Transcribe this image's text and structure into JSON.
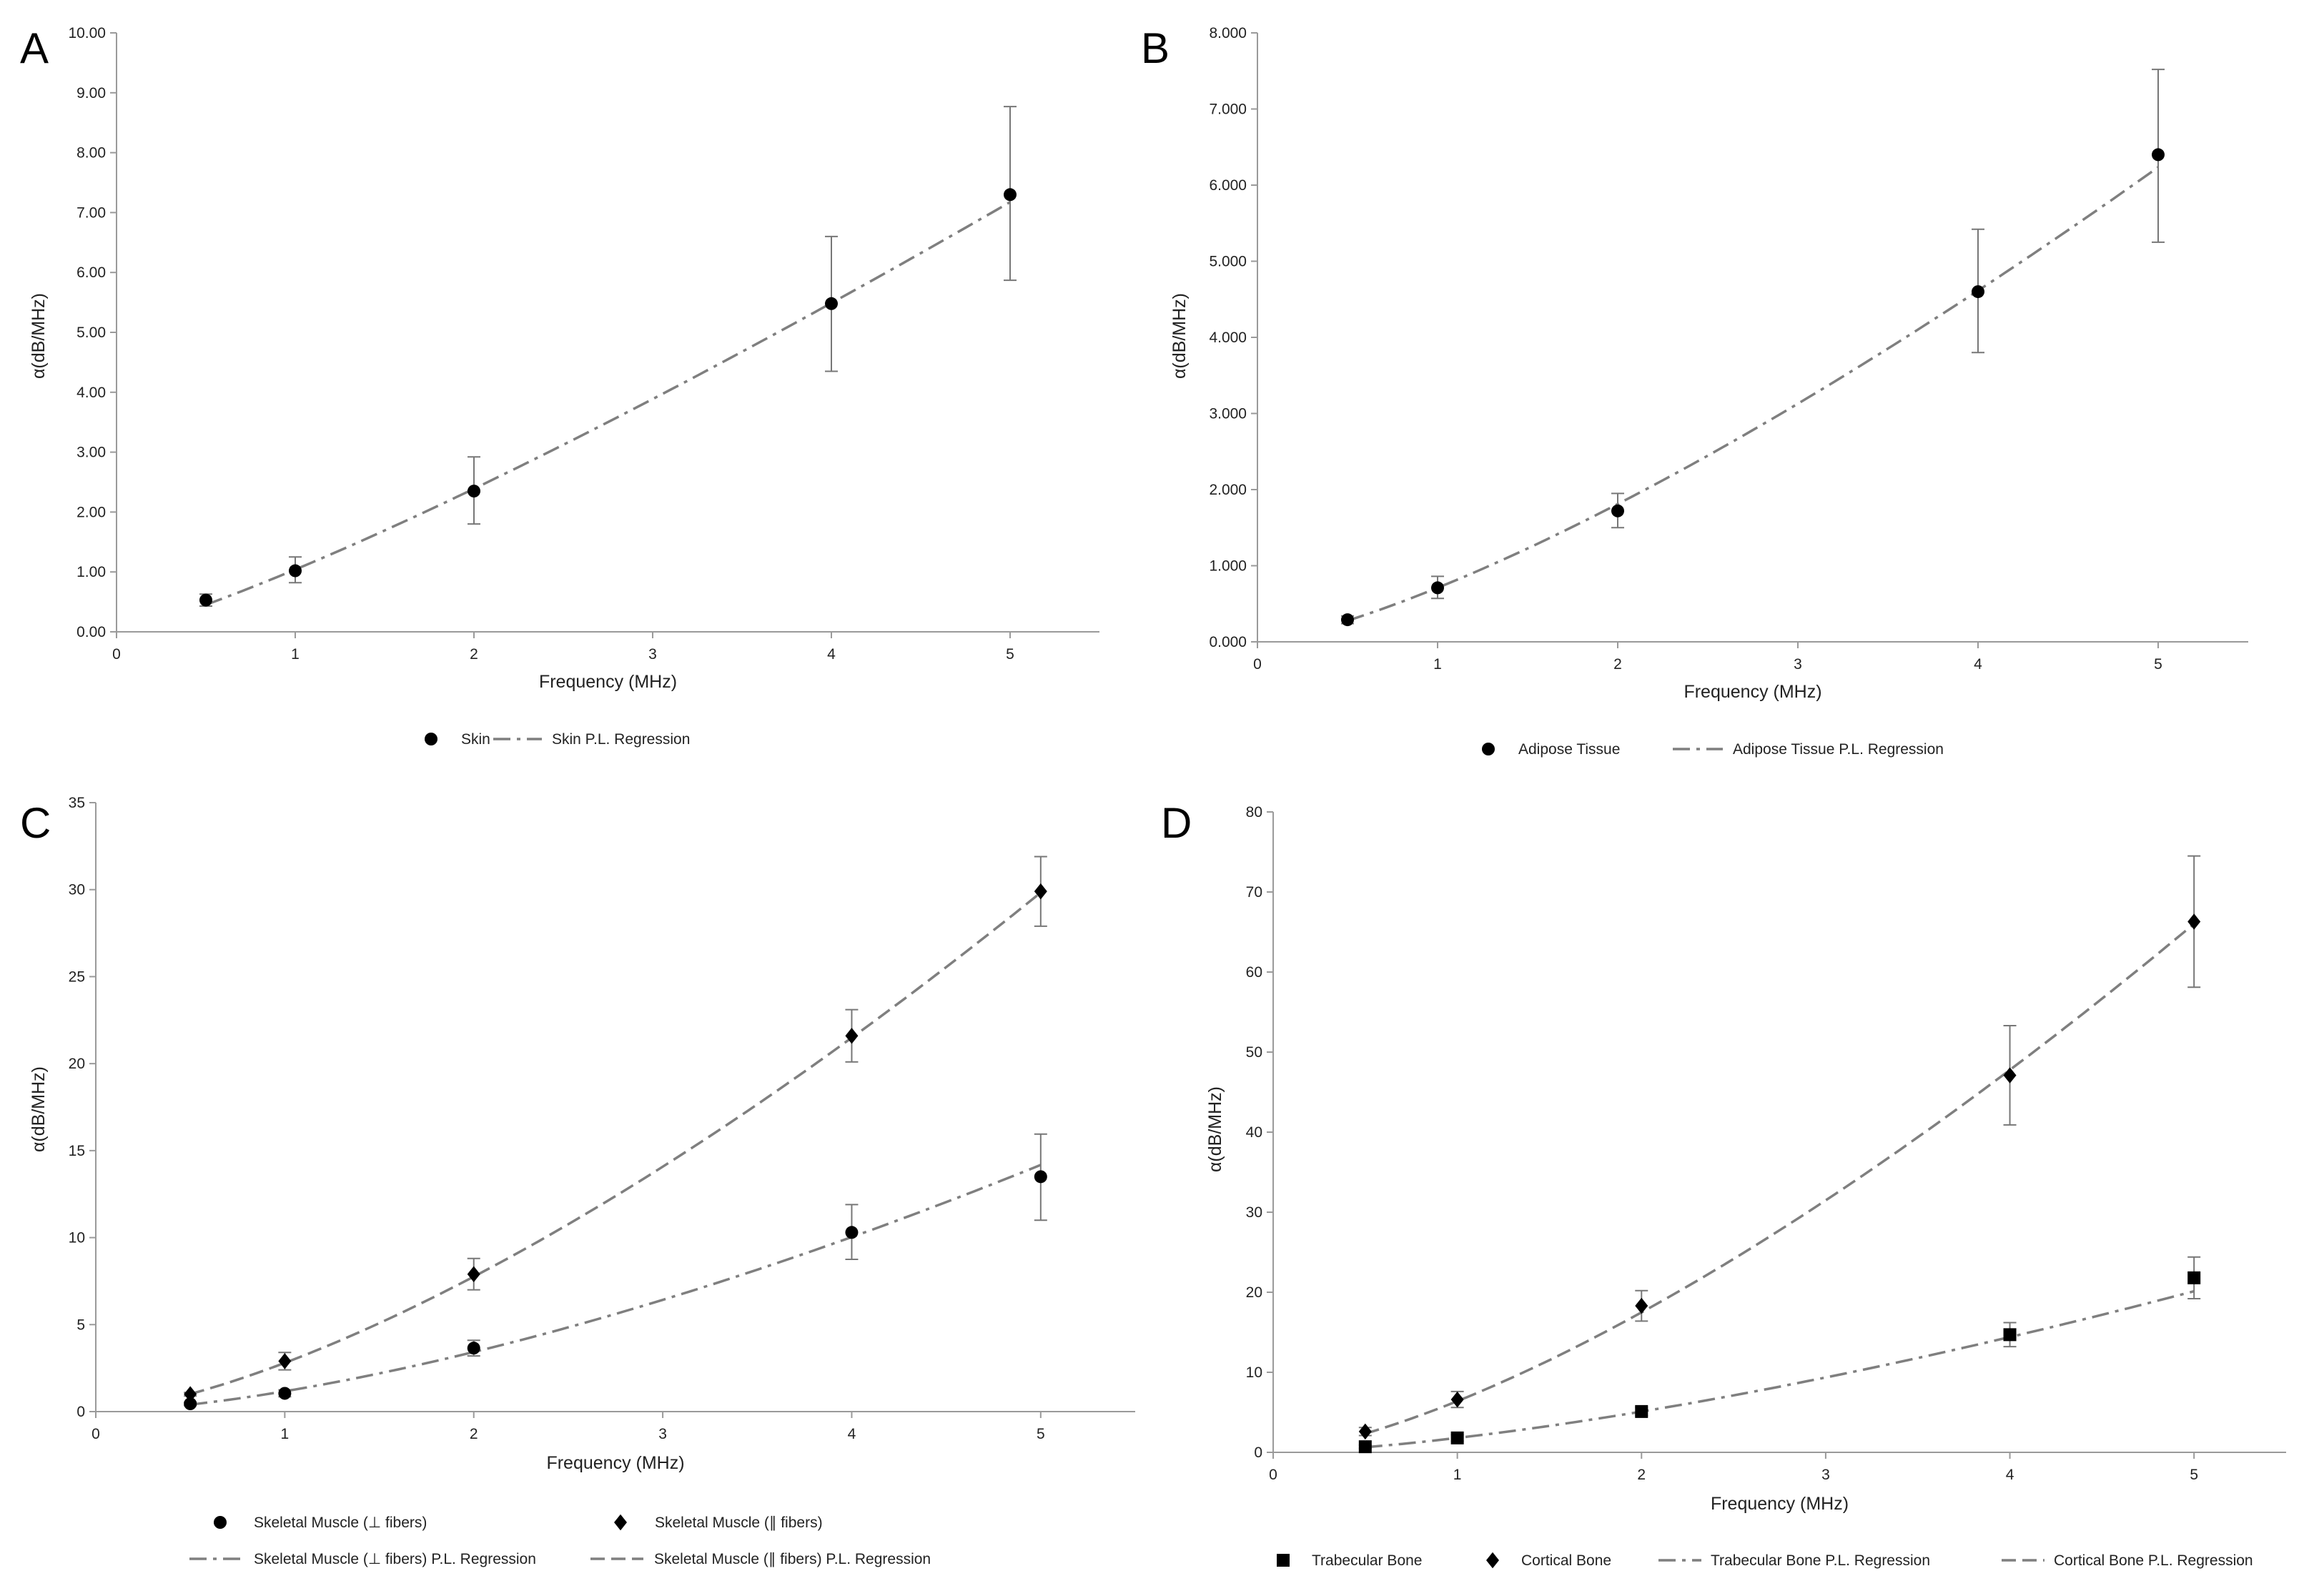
{
  "chart_data": [
    {
      "panel": "A",
      "type": "scatter",
      "xlabel": "Frequency (MHz)",
      "ylabel": "α(dB/MHz)",
      "xlim": [
        0,
        5.5
      ],
      "ylim": [
        0,
        10
      ],
      "x_ticks": [
        "0",
        "1",
        "2",
        "3",
        "4",
        "5"
      ],
      "y_ticks": [
        "0.00",
        "1.00",
        "2.00",
        "3.00",
        "4.00",
        "5.00",
        "6.00",
        "7.00",
        "8.00",
        "9.00",
        "10.00"
      ],
      "series": [
        {
          "name": "Skin",
          "marker": "circle",
          "x": [
            0.5,
            1,
            2,
            4,
            5
          ],
          "y": [
            0.53,
            1.02,
            2.35,
            5.48,
            7.3
          ],
          "err_low": [
            0.43,
            0.82,
            1.8,
            4.35,
            5.87
          ],
          "err_high": [
            0.63,
            1.25,
            2.92,
            6.6,
            8.77
          ]
        }
      ],
      "regressions": [
        {
          "name": "Skin P.L. Regression",
          "style": "dashdot",
          "a": 1.04,
          "b": 1.2
        }
      ]
    },
    {
      "panel": "B",
      "type": "scatter",
      "xlabel": "Frequency (MHz)",
      "ylabel": "α(dB/MHz)",
      "xlim": [
        0,
        5.5
      ],
      "ylim": [
        0,
        8
      ],
      "x_ticks": [
        "0",
        "1",
        "2",
        "3",
        "4",
        "5"
      ],
      "y_ticks": [
        "0.000",
        "1.000",
        "2.000",
        "3.000",
        "4.000",
        "5.000",
        "6.000",
        "7.000",
        "8.000"
      ],
      "series": [
        {
          "name": "Adipose Tissue",
          "marker": "circle",
          "x": [
            0.5,
            1,
            2,
            4,
            5
          ],
          "y": [
            0.29,
            0.71,
            1.72,
            4.6,
            6.4
          ],
          "err_low": [
            0.24,
            0.57,
            1.5,
            3.8,
            5.25
          ],
          "err_high": [
            0.34,
            0.86,
            1.95,
            5.42,
            7.52
          ]
        }
      ],
      "regressions": [
        {
          "name": "Adipose Tissue P.L. Regression",
          "style": "dashdot",
          "a": 0.71,
          "b": 1.35
        }
      ]
    },
    {
      "panel": "C",
      "type": "scatter",
      "xlabel": "Frequency (MHz)",
      "ylabel": "α(dB/MHz)",
      "xlim": [
        0,
        5.5
      ],
      "ylim": [
        0,
        35
      ],
      "x_ticks": [
        "0",
        "1",
        "2",
        "3",
        "4",
        "5"
      ],
      "y_ticks": [
        "0",
        "5",
        "10",
        "15",
        "20",
        "25",
        "30",
        "35"
      ],
      "series": [
        {
          "name": "Skeletal Muscle (⊥ fibers)",
          "marker": "circle",
          "x": [
            0.5,
            1,
            2,
            4,
            5
          ],
          "y": [
            0.45,
            1.05,
            3.65,
            10.3,
            13.5
          ],
          "err_low": [
            0.35,
            0.85,
            3.2,
            8.75,
            11.0
          ],
          "err_high": [
            0.55,
            1.25,
            4.1,
            11.9,
            15.95
          ]
        },
        {
          "name": "Skeletal Muscle (∥ fibers)",
          "marker": "diamond",
          "x": [
            0.5,
            1,
            2,
            4,
            5
          ],
          "y": [
            1.0,
            2.9,
            7.9,
            21.6,
            29.9
          ],
          "err_low": [
            0.9,
            2.4,
            7.0,
            20.1,
            27.9
          ],
          "err_high": [
            1.1,
            3.4,
            8.8,
            23.1,
            31.9
          ]
        }
      ],
      "regressions": [
        {
          "name": "Skeletal Muscle (⊥ fibers) P.L. Regression",
          "style": "dashdot",
          "a": 1.17,
          "b": 1.55
        },
        {
          "name": "Skeletal Muscle (∥ fibers) P.L. Regression",
          "style": "dashed",
          "a": 2.8,
          "b": 1.47
        }
      ]
    },
    {
      "panel": "D",
      "type": "scatter",
      "xlabel": "Frequency (MHz)",
      "ylabel": "α(dB/MHz)",
      "xlim": [
        0,
        5.5
      ],
      "ylim": [
        0,
        80
      ],
      "x_ticks": [
        "0",
        "1",
        "2",
        "3",
        "4",
        "5"
      ],
      "y_ticks": [
        "0",
        "10",
        "20",
        "30",
        "40",
        "50",
        "60",
        "70",
        "80"
      ],
      "series": [
        {
          "name": "Trabecular Bone",
          "marker": "square",
          "x": [
            0.5,
            1,
            2,
            4,
            5
          ],
          "y": [
            0.7,
            1.8,
            5.1,
            14.7,
            21.8
          ],
          "err_low": [
            0.5,
            1.4,
            4.6,
            13.2,
            19.2
          ],
          "err_high": [
            0.9,
            2.2,
            5.6,
            16.2,
            24.4
          ]
        },
        {
          "name": "Cortical Bone",
          "marker": "diamond",
          "x": [
            0.5,
            1,
            2,
            4,
            5
          ],
          "y": [
            2.6,
            6.6,
            18.3,
            47.1,
            66.3
          ],
          "err_low": [
            2.1,
            5.6,
            16.4,
            40.9,
            58.1
          ],
          "err_high": [
            3.1,
            7.6,
            20.2,
            53.3,
            74.5
          ]
        }
      ],
      "regressions": [
        {
          "name": "Trabecular Bone P.L. Regression",
          "style": "dashdot",
          "a": 1.8,
          "b": 1.5
        },
        {
          "name": "Cortical Bone P.L. Regression",
          "style": "dashed",
          "a": 6.4,
          "b": 1.45
        }
      ]
    }
  ]
}
